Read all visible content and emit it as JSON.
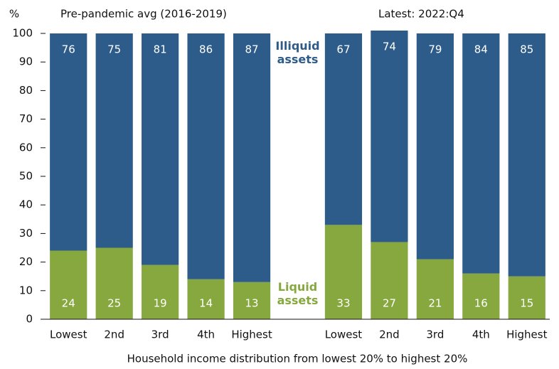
{
  "chart_data": {
    "type": "stacked_bar",
    "y_label": "%",
    "x_label": "Household income distribution from lowest 20% to highest 20%",
    "group_titles": [
      "Pre-pandemic avg (2016-2019)",
      "Latest: 2022:Q4"
    ],
    "categories": [
      "Lowest",
      "2nd",
      "3rd",
      "4th",
      "Highest",
      null,
      "Lowest",
      "2nd",
      "3rd",
      "4th",
      "Highest"
    ],
    "series": [
      {
        "name": "Liquid assets",
        "color": "#86a83f",
        "values": [
          24,
          25,
          19,
          14,
          13,
          null,
          33,
          27,
          21,
          16,
          15
        ]
      },
      {
        "name": "Illiquid assets",
        "color": "#2d5b8a",
        "values": [
          76,
          75,
          81,
          86,
          87,
          null,
          67,
          74,
          79,
          84,
          85
        ]
      }
    ],
    "ylim": [
      0,
      100
    ],
    "yticks": [
      0,
      10,
      20,
      30,
      40,
      50,
      60,
      70,
      80,
      90,
      100
    ]
  }
}
